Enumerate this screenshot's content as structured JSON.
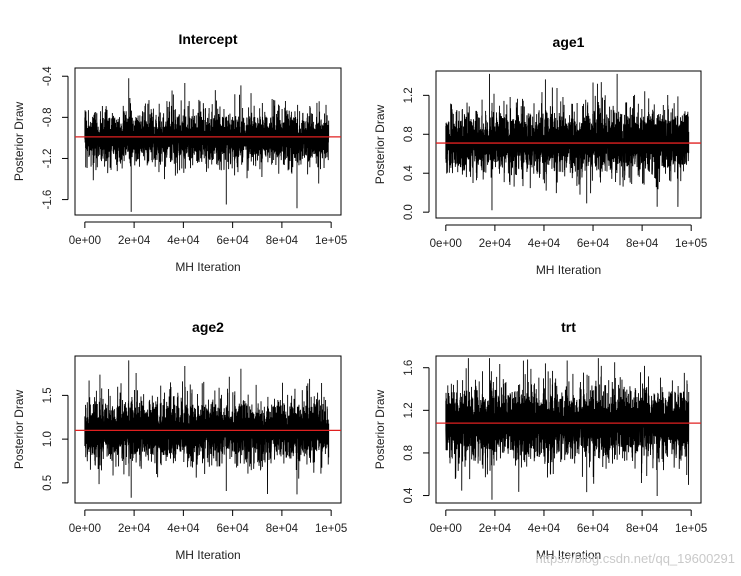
{
  "chart_data": [
    {
      "type": "line",
      "title": "Intercept",
      "xlabel": "MH Iteration",
      "ylabel": "Posterior Draw",
      "x_ticks": [
        0,
        20000,
        40000,
        60000,
        80000,
        100000
      ],
      "x_tick_labels": [
        "0e+00",
        "2e+04",
        "4e+04",
        "6e+04",
        "8e+04",
        "1e+05"
      ],
      "y_ticks": [
        -0.4,
        -0.8,
        -1.2,
        -1.6
      ],
      "y_tick_labels": [
        "-0.4",
        "-0.8",
        "-1.2",
        "-1.6"
      ],
      "xlim": [
        -4000,
        104000
      ],
      "ylim": [
        -1.75,
        -0.32
      ],
      "series": [
        {
          "kind": "trace",
          "color": "#000000",
          "x_range": [
            0,
            99000
          ],
          "center": -1.0,
          "band": [
            -1.35,
            -0.68
          ],
          "min": -1.72,
          "max": -0.42
        },
        {
          "kind": "hline",
          "color": "#e02020",
          "y": -0.99
        }
      ]
    },
    {
      "type": "line",
      "title": "age1",
      "xlabel": "MH Iteration",
      "ylabel": "Posterior Draw",
      "x_ticks": [
        0,
        20000,
        40000,
        60000,
        80000,
        100000
      ],
      "x_tick_labels": [
        "0e+00",
        "2e+04",
        "4e+04",
        "6e+04",
        "8e+04",
        "1e+05"
      ],
      "y_ticks": [
        0.0,
        0.4,
        0.8,
        1.2
      ],
      "y_tick_labels": [
        "0.0",
        "0.4",
        "0.8",
        "1.2"
      ],
      "xlim": [
        -4000,
        104000
      ],
      "ylim": [
        -0.06,
        1.45
      ],
      "series": [
        {
          "kind": "trace",
          "color": "#000000",
          "x_range": [
            0,
            99000
          ],
          "center": 0.72,
          "band": [
            0.3,
            1.15
          ],
          "min": 0.02,
          "max": 1.42
        },
        {
          "kind": "hline",
          "color": "#e02020",
          "y": 0.71
        }
      ]
    },
    {
      "type": "line",
      "title": "age2",
      "xlabel": "MH Iteration",
      "ylabel": "Posterior Draw",
      "x_ticks": [
        0,
        20000,
        40000,
        60000,
        80000,
        100000
      ],
      "x_tick_labels": [
        "0e+00",
        "2e+04",
        "4e+04",
        "6e+04",
        "8e+04",
        "1e+05"
      ],
      "y_ticks": [
        0.5,
        1.0,
        1.5
      ],
      "y_tick_labels": [
        "0.5",
        "1.0",
        "1.5"
      ],
      "xlim": [
        -4000,
        104000
      ],
      "ylim": [
        0.27,
        1.95
      ],
      "series": [
        {
          "kind": "trace",
          "color": "#000000",
          "x_range": [
            0,
            99000
          ],
          "center": 1.1,
          "band": [
            0.62,
            1.55
          ],
          "min": 0.33,
          "max": 1.9
        },
        {
          "kind": "hline",
          "color": "#e02020",
          "y": 1.1
        }
      ]
    },
    {
      "type": "line",
      "title": "trt",
      "xlabel": "MH Iteration",
      "ylabel": "Posterior Draw",
      "x_ticks": [
        0,
        20000,
        40000,
        60000,
        80000,
        100000
      ],
      "x_tick_labels": [
        "0e+00",
        "2e+04",
        "4e+04",
        "6e+04",
        "8e+04",
        "1e+05"
      ],
      "y_ticks": [
        0.4,
        0.8,
        1.2,
        1.6
      ],
      "y_tick_labels": [
        "0.4",
        "0.8",
        "1.2",
        "1.6"
      ],
      "xlim": [
        -4000,
        104000
      ],
      "ylim": [
        0.33,
        1.71
      ],
      "series": [
        {
          "kind": "trace",
          "color": "#000000",
          "x_range": [
            0,
            99000
          ],
          "center": 1.08,
          "band": [
            0.62,
            1.55
          ],
          "min": 0.36,
          "max": 1.69
        },
        {
          "kind": "hline",
          "color": "#e02020",
          "y": 1.08
        }
      ]
    }
  ],
  "watermark": "https://blog.csdn.net/qq_19600291"
}
